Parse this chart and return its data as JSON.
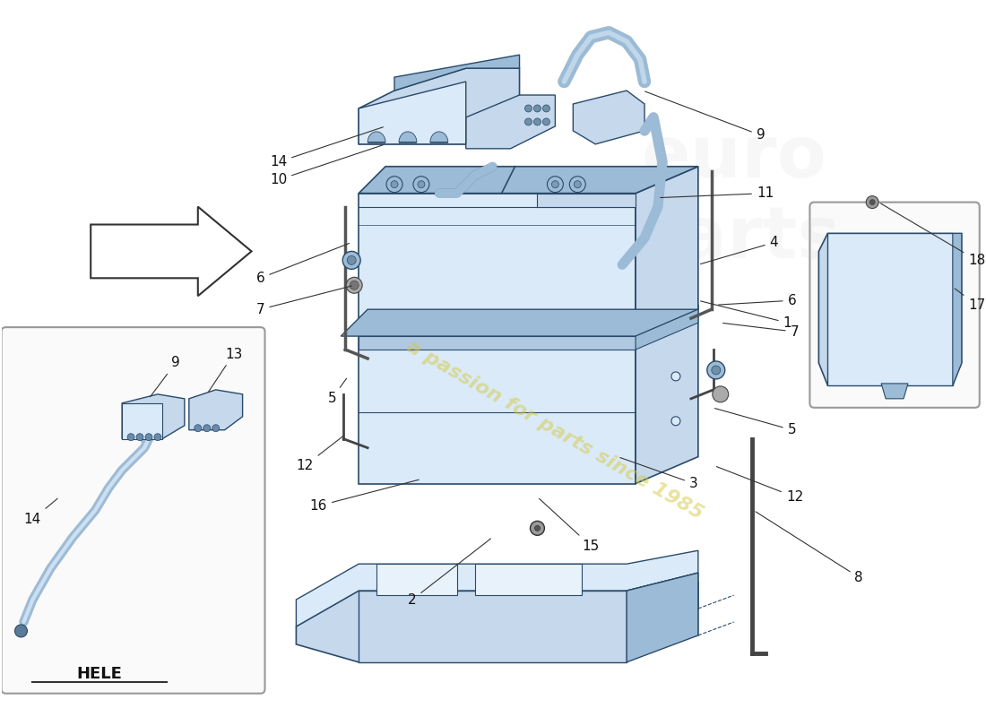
{
  "bg_color": "#ffffff",
  "pc_light": "#c5d8ec",
  "pc_mid": "#9bbbd6",
  "pc_dark": "#6a99be",
  "pc_line": "#2a4a6a",
  "pc_face": "#daeaf8",
  "label_color": "#111111",
  "label_fontsize": 11,
  "watermark_text": "a passion for parts since 1985",
  "watermark_color": "#d4c840",
  "watermark_alpha": 0.5,
  "hele_label": "HELE",
  "hele_fontsize": 13
}
